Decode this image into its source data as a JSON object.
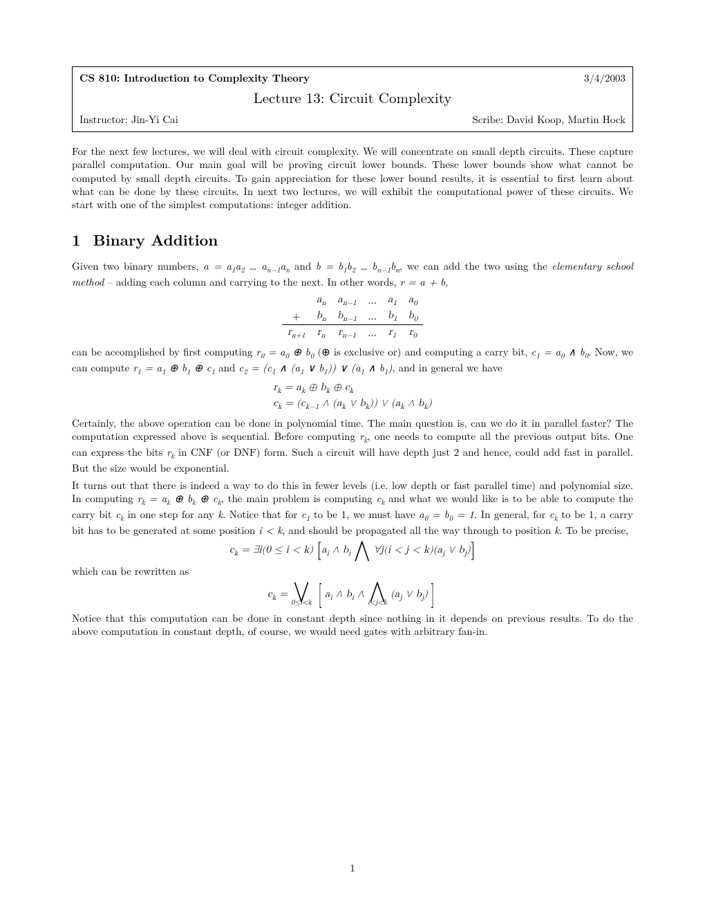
{
  "doc": {
    "background_color": "#ffffff",
    "text_color": "#000000",
    "font_family": "Computer Modern / Latin Modern",
    "body_fontsize_pt": 11
  },
  "header": {
    "course": "CS 810: Introduction to Complexity Theory",
    "date": "3/4/2003",
    "lecture_title": "Lecture 13: Circuit Complexity",
    "instructor_label": "Instructor:",
    "instructor": "Jin-Yi Cai",
    "scribe_label": "Scribe:",
    "scribe": "David Koop, Martin Hock"
  },
  "intro": "For the next few lectures, we will deal with circuit complexity. We will concentrate on small depth circuits. These capture parallel computation. Our main goal will be proving circuit lower bounds. These lower bounds show what cannot be computed by small depth circuits. To gain appreciation for these lower bound results, it is essential to first learn about what can be done by these circuits. In next two lectures, we will exhibit the computational power of these circuits. We start with one of the simplest computations: integer addition.",
  "section1": {
    "number": "1",
    "title": "Binary Addition",
    "p1_pre": "Given two binary numbers, ",
    "p1_math": "a = a₁a₂ … aₙ₋₁aₙ and b = b₁b₂ … bₙ₋₁bₙ",
    "p1_post": ", we can add the two using the ",
    "p1_em": "elementary school method",
    "p1_tail": " – adding each column and carrying to the next. In other words, ",
    "p1_end": "r = a + b,",
    "addition": {
      "row_a": [
        "",
        "aₙ",
        "aₙ₋₁",
        "…",
        "a₁",
        "a₀"
      ],
      "row_b": [
        "+",
        "bₙ",
        "bₙ₋₁",
        "…",
        "b₁",
        "b₀"
      ],
      "row_r": [
        "rₙ₊₁",
        "rₙ",
        "rₙ₋₁",
        "…",
        "r₁",
        "r₀"
      ]
    },
    "p2": "can be accomplished by first computing r₀ = a₀ ⊕ b₀ (⊕ is exclusive or) and computing a carry bit, c₁ = a₀ ∧ b₀. Now, we can compute r₁ = a₁ ⊕ b₁ ⊕ c₁ and c₂ = (c₁ ∧ (a₁ ∨ b₁)) ∨ (a₁ ∧ b₁), and in general we have",
    "eq_rk": "rₖ = aₖ ⊕ bₖ ⊕ cₖ",
    "eq_ck": "cₖ = (cₖ₋₁ ∧ (aₖ ∨ bₖ)) ∨ (aₖ ∧ bₖ)",
    "p3": "Certainly, the above operation can be done in polynomial time. The main question is, can we do it in parallel faster? The computation expressed above is sequential. Before computing rₖ, one needs to compute all the previous output bits. One can express the bits rₖ in CNF (or DNF) form. Such a circuit will have depth just 2 and hence, could add fast in parallel. But the size would be exponential.",
    "p4": "It turns out that there is indeed a way to do this in fewer levels (i.e. low depth or fast parallel time) and polynomial size. In computing rₖ = aₖ ⊕ bₖ ⊕ cₖ, the main problem is computing cₖ and what we would like is to be able to compute the carry bit cₖ in one step for any k. Notice that for c₁ to be 1, we must have a₀ = b₀ = 1. In general, for cₖ to be 1, a carry bit has to be generated at some position i < k, and should be propagated all the way through to position k. To be precise,",
    "eq_quant": {
      "lead": "cₖ = ∃i(0 ≤ i < k)",
      "body_l": "aᵢ ∧ bᵢ",
      "bigand": "⋀",
      "body_r": "∀j(i < j < k)(aⱼ ∨ bⱼ)"
    },
    "p5": "which can be rewritten as",
    "eq_final": {
      "lead": "cₖ =",
      "bigor": "⋁",
      "or_sub": "0≤i<k",
      "body_l": "aᵢ ∧ bᵢ ∧",
      "bigand": "⋀",
      "and_sub": "i<j<k",
      "body_r": "(aⱼ ∨ bⱼ)"
    },
    "p6": "Notice that this computation can be done in constant depth since nothing in it depends on previous results. To do the above computation in constant depth, of course, we would need gates with arbitrary fan-in."
  },
  "pagenum": "1"
}
